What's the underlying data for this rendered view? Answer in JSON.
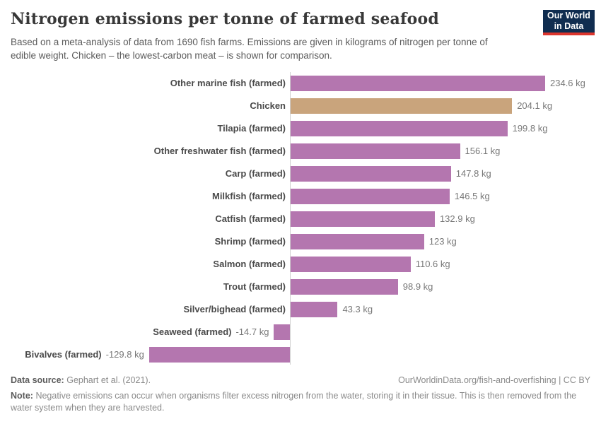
{
  "header": {
    "title": "Nitrogen emissions per tonne of farmed seafood",
    "subtitle": "Based on a meta-analysis of data from 1690 fish farms. Emissions are given in kilograms of nitrogen per tonne of edible weight. Chicken – the lowest-carbon meat – is shown for comparison.",
    "logo": {
      "line1": "Our World",
      "line2": "in Data"
    }
  },
  "chart_data": {
    "type": "bar",
    "orientation": "horizontal",
    "title": "Nitrogen emissions per tonne of farmed seafood",
    "xlabel": "",
    "ylabel": "",
    "unit": "kg",
    "xlim": [
      -129.8,
      234.6
    ],
    "grid": false,
    "legend": false,
    "categories": [
      "Other marine fish (farmed)",
      "Chicken",
      "Tilapia (farmed)",
      "Other freshwater fish (farmed)",
      "Carp (farmed)",
      "Milkfish (farmed)",
      "Catfish (farmed)",
      "Shrimp (farmed)",
      "Salmon (farmed)",
      "Trout (farmed)",
      "Silver/bighead (farmed)",
      "Seaweed (farmed)",
      "Bivalves (farmed)"
    ],
    "values": [
      234.6,
      204.1,
      199.8,
      156.1,
      147.8,
      146.5,
      132.9,
      123,
      110.6,
      98.9,
      43.3,
      -14.7,
      -129.8
    ],
    "value_labels": [
      "234.6 kg",
      "204.1 kg",
      "199.8 kg",
      "156.1 kg",
      "147.8 kg",
      "146.5 kg",
      "132.9 kg",
      "123 kg",
      "110.6 kg",
      "98.9 kg",
      "43.3 kg",
      "-14.7 kg",
      "-129.8 kg"
    ],
    "bar_color_default": "#b476af",
    "bar_color_highlight": "#c9a47c",
    "highlight_index": 1,
    "axis_color": "#d0d0d0"
  },
  "footer": {
    "source_label": "Data source:",
    "source_value": "Gephart et al. (2021).",
    "url_credit": "OurWorldinData.org/fish-and-overfishing | CC BY",
    "note_label": "Note:",
    "note_text": "Negative emissions can occur when organisms filter excess nitrogen from the water, storing it in their tissue. This is then removed from the water system when they are harvested."
  }
}
